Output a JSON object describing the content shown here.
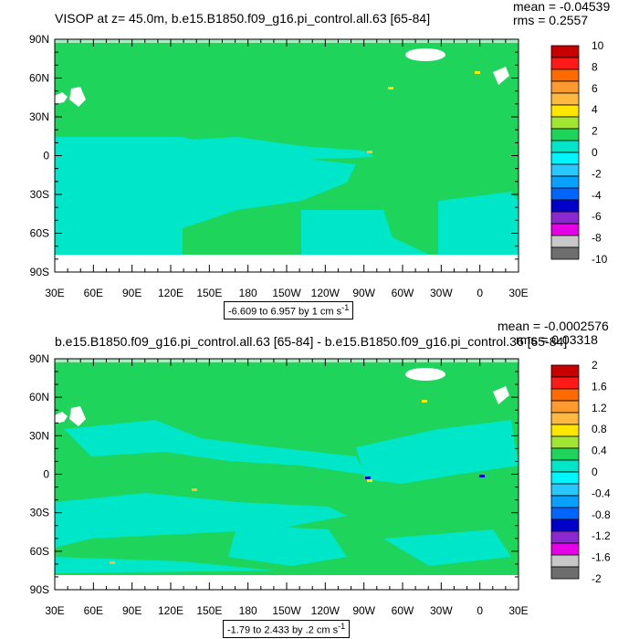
{
  "chart_data": [
    {
      "type": "heatmap",
      "title": "VISOP at z=  45.0m, b.e15.B1850.f09_g16.pi_control.all.63 [65-84]",
      "stats": {
        "mean_label": "mean = -0.04539",
        "rms_label": "rms = 0.2557"
      },
      "y_ticks": [
        "90N",
        "60N",
        "30N",
        "0",
        "30S",
        "60S",
        "90S"
      ],
      "x_ticks": [
        "30E",
        "60E",
        "90E",
        "120E",
        "150E",
        "180",
        "150W",
        "120W",
        "90W",
        "60W",
        "30W",
        "0",
        "30E"
      ],
      "range_label": "-6.609 to 6.957 by 1 cm s",
      "range_sup": "-1",
      "colorbar": {
        "labels": [
          "10",
          "8",
          "6",
          "4",
          "2",
          "0",
          "-2",
          "-4",
          "-6",
          "-8",
          "-10"
        ],
        "colors": [
          "#c80000",
          "#ff1a1a",
          "#ff6a00",
          "#ff9a30",
          "#ffb940",
          "#ffe600",
          "#a0e632",
          "#1fd45a",
          "#00e6c8",
          "#00f5ff",
          "#28c8ff",
          "#0aa0ff",
          "#0064ff",
          "#0000c8",
          "#8c28d2",
          "#e600e6",
          "#c8c8c8",
          "#6e6e6e"
        ]
      },
      "field": {
        "background_level": "0",
        "ocean_level": "-1"
      }
    },
    {
      "type": "heatmap",
      "title": "b.e15.B1850.f09_g16.pi_control.all.63 [65-84] - b.e15.B1850.f09_g16.pi_control.36 [65-84]",
      "stats": {
        "mean_label": "mean = -0.0002576",
        "rms_label": "rms = 0.03318"
      },
      "y_ticks": [
        "90N",
        "60N",
        "30N",
        "0",
        "30S",
        "60S",
        "90S"
      ],
      "x_ticks": [
        "30E",
        "60E",
        "90E",
        "120E",
        "150E",
        "180",
        "150W",
        "120W",
        "90W",
        "60W",
        "30W",
        "0",
        "30E"
      ],
      "range_label": "-1.79 to 2.433 by .2 cm s",
      "range_sup": "-1",
      "colorbar": {
        "labels": [
          "2",
          "1.6",
          "1.2",
          "0.8",
          "0.4",
          "0",
          "-0.4",
          "-0.8",
          "-1.2",
          "-1.6",
          "-2"
        ],
        "colors": [
          "#c80000",
          "#ff1a1a",
          "#ff6a00",
          "#ff9a30",
          "#ffb940",
          "#ffe600",
          "#a0e632",
          "#1fd45a",
          "#00e6c8",
          "#00f5ff",
          "#28c8ff",
          "#0aa0ff",
          "#0064ff",
          "#0000c8",
          "#8c28d2",
          "#e600e6",
          "#c8c8c8",
          "#6e6e6e"
        ]
      },
      "field": {
        "background_level": "0",
        "ocean_level": "-0.2"
      }
    }
  ]
}
